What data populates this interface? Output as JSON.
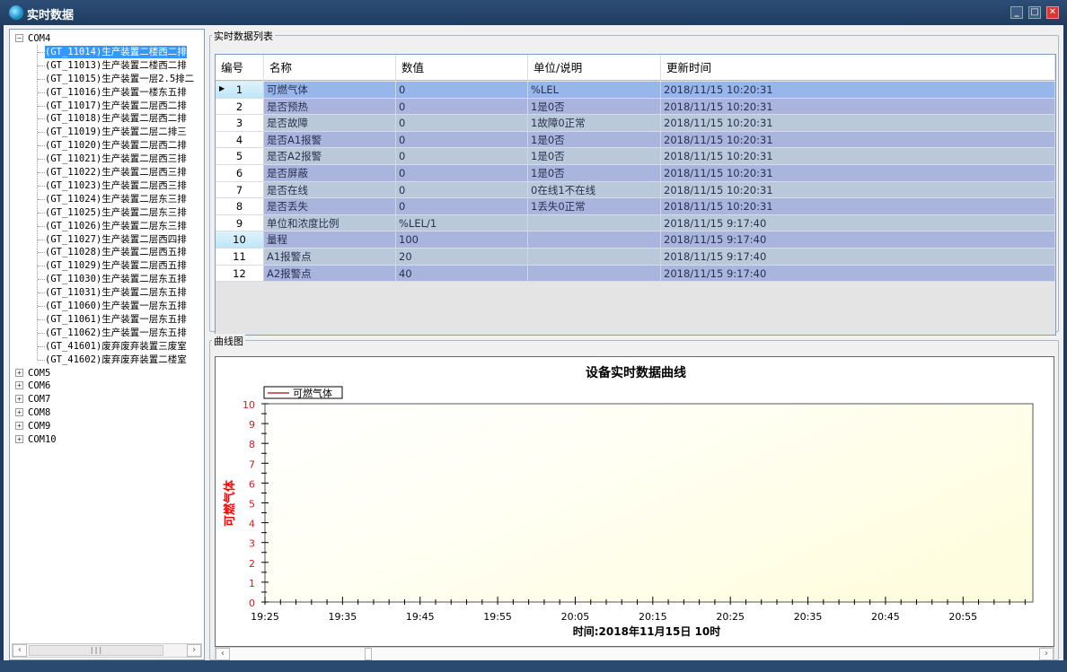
{
  "window": {
    "title": "实时数据",
    "icons": [
      "app-logo-icon",
      "minimize-icon",
      "maximize-icon",
      "close-icon"
    ]
  },
  "tree": {
    "root": "COM4",
    "children": [
      "(GT_11014)生产装置二楼西二排",
      "(GT_11013)生产装置二楼西二排",
      "(GT_11015)生产装置一层2.5排二",
      "(GT_11016)生产装置一楼东五排",
      "(GT_11017)生产装置二层西二排",
      "(GT_11018)生产装置二层西二排",
      "(GT_11019)生产装置二层二排三",
      "(GT_11020)生产装置二层西二排",
      "(GT_11021)生产装置二层西三排",
      "(GT_11022)生产装置二层西三排",
      "(GT_11023)生产装置二层西三排",
      "(GT_11024)生产装置二层东三排",
      "(GT_11025)生产装置二层东三排",
      "(GT_11026)生产装置二层东三排",
      "(GT_11027)生产装置二层西四排",
      "(GT_11028)生产装置二层西五排",
      "(GT_11029)生产装置二层西五排",
      "(GT_11030)生产装置二层东五排",
      "(GT_11031)生产装置二层东五排",
      "(GT_11060)生产装置一层东五排",
      "(GT_11061)生产装置一层东五排",
      "(GT_11062)生产装置一层东五排",
      "(GT_41601)废弃废弃装置三废室",
      "(GT_41602)废弃废弃装置二楼室"
    ],
    "selected_index": 0,
    "collapsed": [
      "COM5",
      "COM6",
      "COM7",
      "COM8",
      "COM9",
      "COM10"
    ]
  },
  "table": {
    "group_label": "实时数据列表",
    "columns": [
      "编号",
      "名称",
      "数值",
      "单位/说明",
      "更新时间"
    ],
    "rows": [
      [
        "1",
        "可燃气体",
        "0",
        "%LEL",
        "2018/11/15 10:20:31"
      ],
      [
        "2",
        "是否预热",
        "0",
        "1是0否",
        "2018/11/15 10:20:31"
      ],
      [
        "3",
        "是否故障",
        "0",
        "1故障0正常",
        "2018/11/15 10:20:31"
      ],
      [
        "4",
        "是否A1报警",
        "0",
        "1是0否",
        "2018/11/15 10:20:31"
      ],
      [
        "5",
        "是否A2报警",
        "0",
        "1是0否",
        "2018/11/15 10:20:31"
      ],
      [
        "6",
        "是否屏蔽",
        "0",
        "1是0否",
        "2018/11/15 10:20:31"
      ],
      [
        "7",
        "是否在线",
        "0",
        "0在线1不在线",
        "2018/11/15 10:20:31"
      ],
      [
        "8",
        "是否丢失",
        "0",
        "1丢失0正常",
        "2018/11/15 10:20:31"
      ],
      [
        "9",
        "单位和浓度比例",
        "%LEL/1",
        "",
        "2018/11/15 9:17:40"
      ],
      [
        "10",
        "量程",
        "100",
        "",
        "2018/11/15 9:17:40"
      ],
      [
        "11",
        "A1报警点",
        "20",
        "",
        "2018/11/15 9:17:40"
      ],
      [
        "12",
        "A2报警点",
        "40",
        "",
        "2018/11/15 9:17:40"
      ]
    ],
    "current_row": 1
  },
  "chart_group_label": "曲线图",
  "chart_data": {
    "type": "line",
    "title": "设备实时数据曲线",
    "xlabel": "时间:2018年11月15日 10时",
    "ylabel": "可燃气体",
    "x_ticks": [
      "19:25",
      "19:35",
      "19:45",
      "19:55",
      "20:05",
      "20:15",
      "20:25",
      "20:35",
      "20:45",
      "20:55"
    ],
    "y_ticks": [
      0,
      1,
      2,
      3,
      4,
      5,
      6,
      7,
      8,
      9,
      10
    ],
    "xlim": [
      "19:25",
      "21:04"
    ],
    "ylim": [
      0,
      10
    ],
    "series": [
      {
        "name": "可燃气体",
        "values": []
      }
    ],
    "legend": "top-left",
    "colors": {
      "series": "#cc6666",
      "ylabel": "#ff0000",
      "ytick": "#cc2222",
      "plot_fill": "#fffde0"
    }
  }
}
